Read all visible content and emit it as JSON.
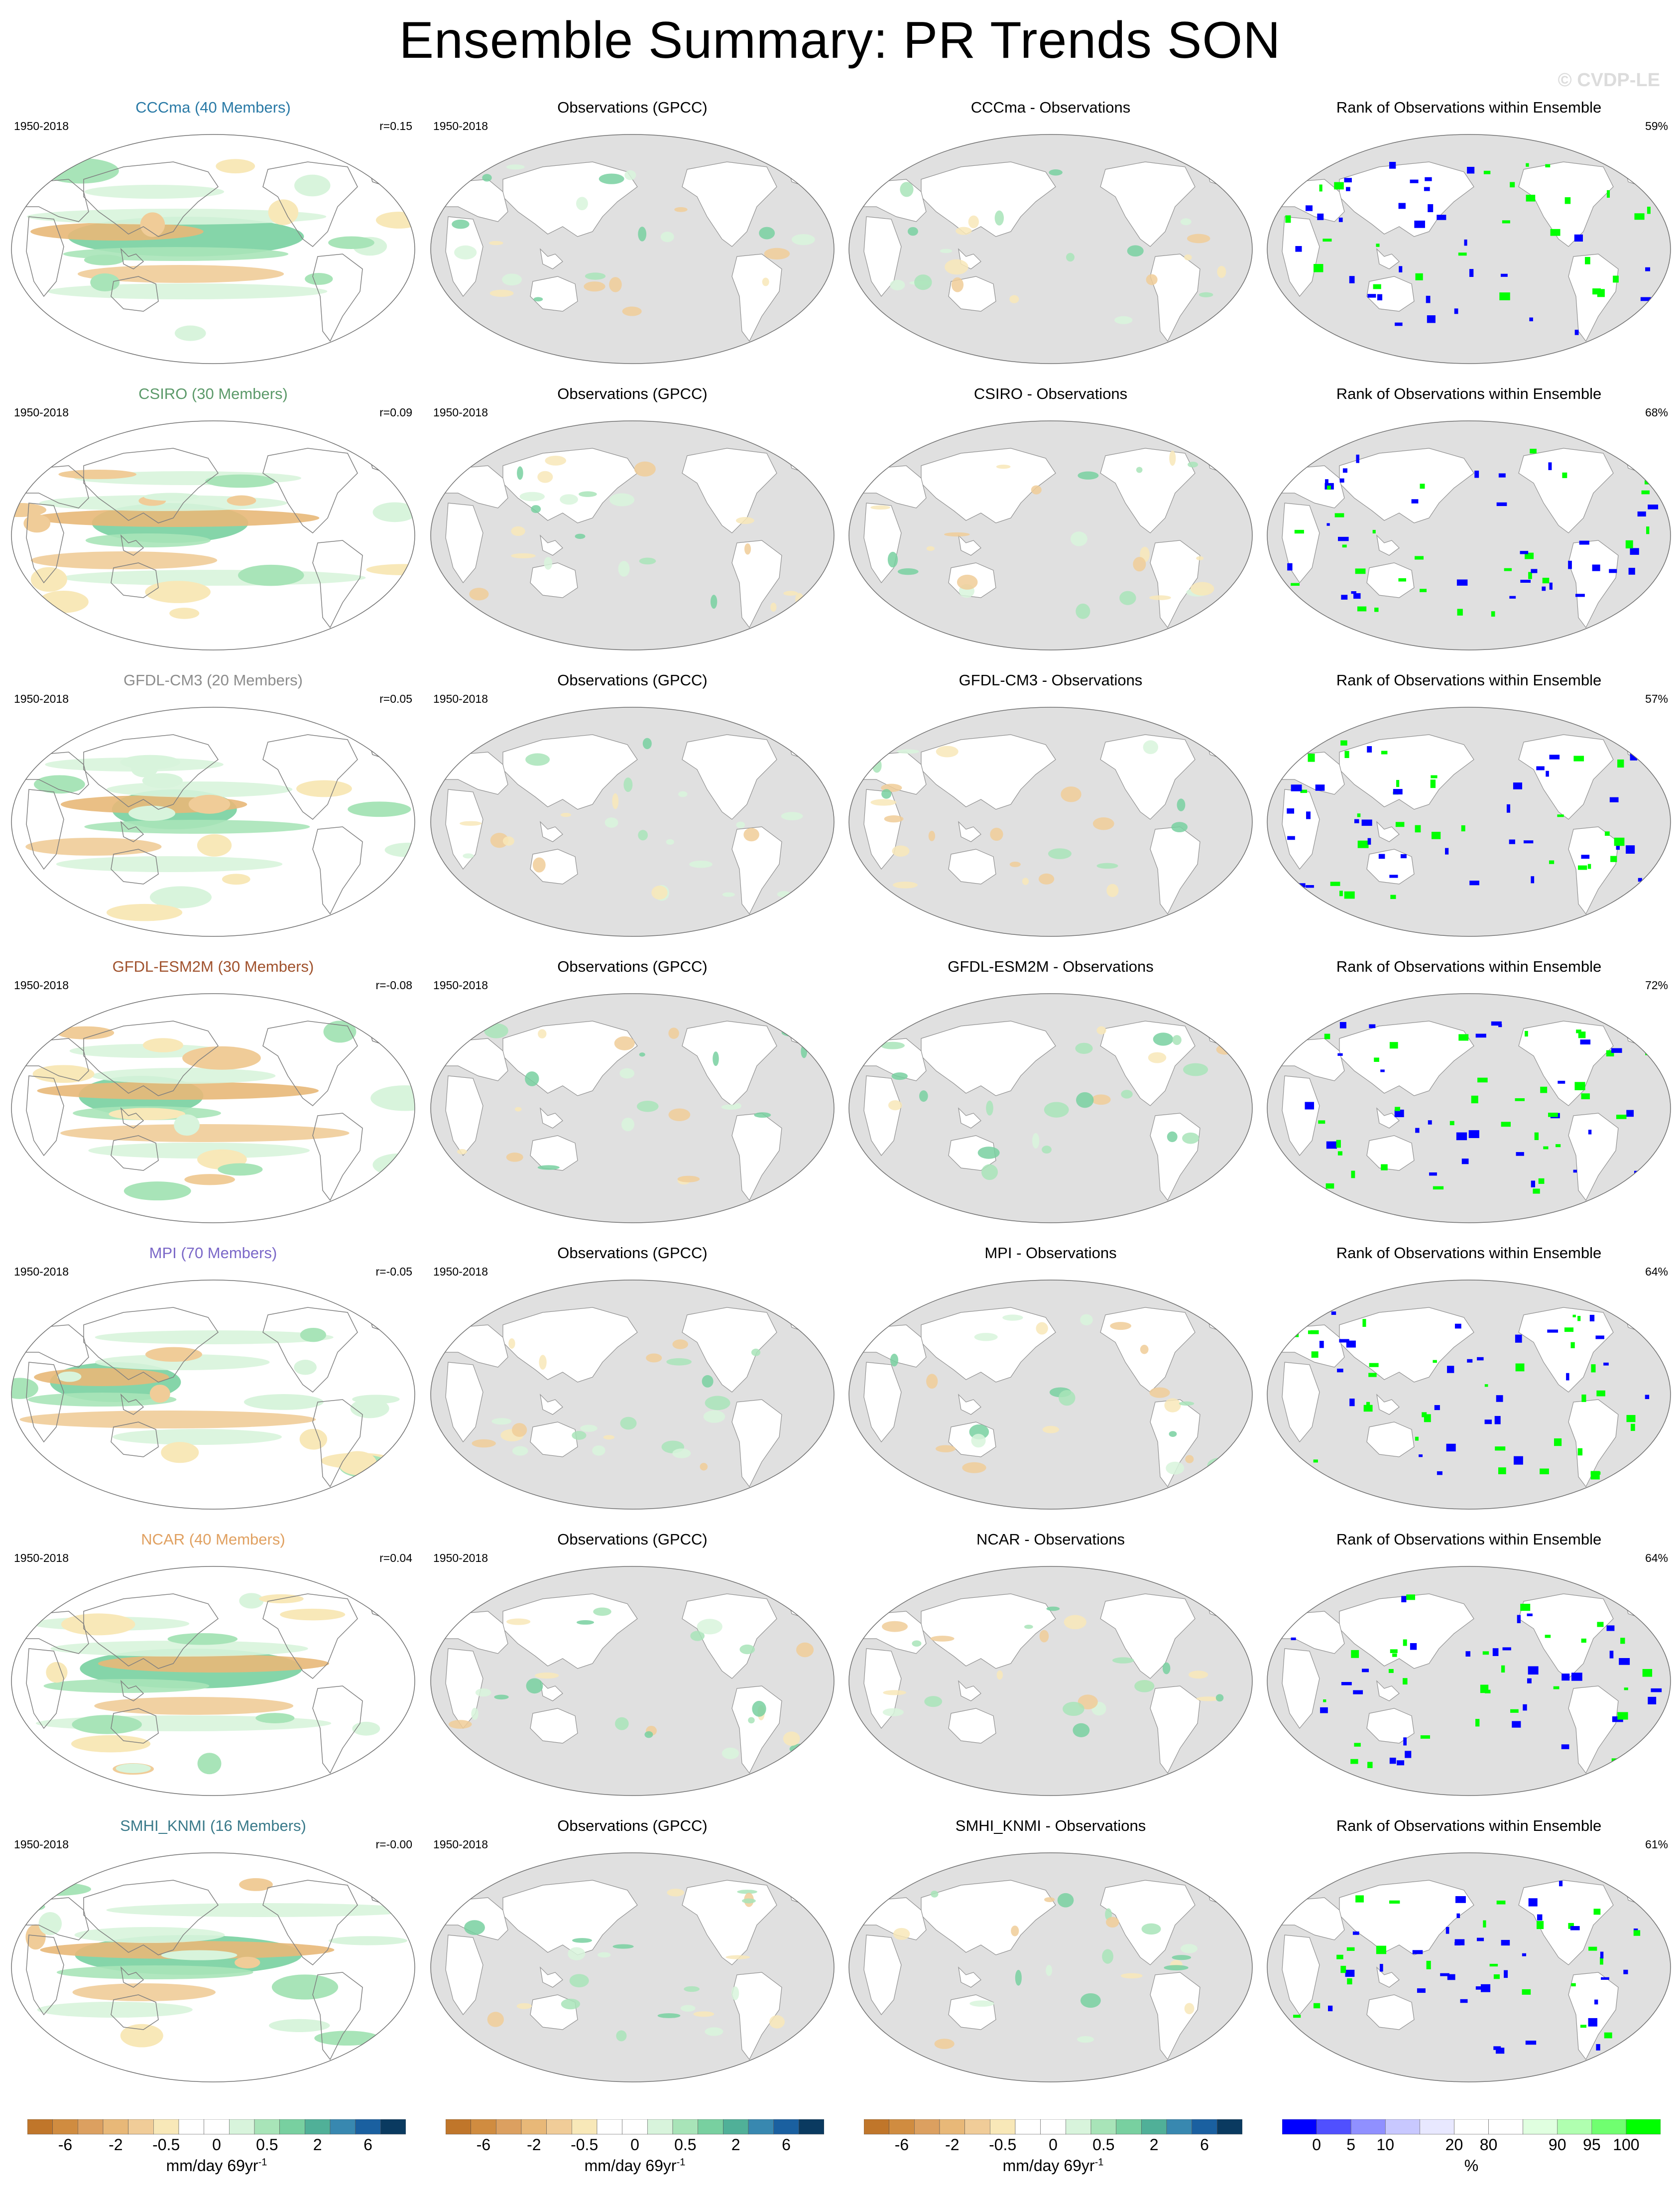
{
  "title": "Ensemble Summary: PR Trends SON",
  "watermark": "© CVDP-LE",
  "period": "1950-2018",
  "obs_title": "Observations (GPCC)",
  "rank_title": "Rank of Observations within Ensemble",
  "rows": [
    {
      "model": "CCCma (40 Members)",
      "model_color": "#2a7aa6",
      "corr": "r=0.15",
      "diff_title": "CCCma - Observations",
      "rank_pct": "59%"
    },
    {
      "model": "CSIRO (30 Members)",
      "model_color": "#5c9a6a",
      "corr": "r=0.09",
      "diff_title": "CSIRO - Observations",
      "rank_pct": "68%"
    },
    {
      "model": "GFDL-CM3 (20 Members)",
      "model_color": "#8c8c8c",
      "corr": "r=0.05",
      "diff_title": "GFDL-CM3 - Observations",
      "rank_pct": "57%"
    },
    {
      "model": "GFDL-ESM2M (30 Members)",
      "model_color": "#a0522d",
      "corr": "r=-0.08",
      "diff_title": "GFDL-ESM2M - Observations",
      "rank_pct": "72%"
    },
    {
      "model": "MPI (70 Members)",
      "model_color": "#7b68c8",
      "corr": "r=-0.05",
      "diff_title": "MPI - Observations",
      "rank_pct": "64%"
    },
    {
      "model": "NCAR (40 Members)",
      "model_color": "#e0a060",
      "corr": "r=0.04",
      "diff_title": "NCAR - Observations",
      "rank_pct": "64%"
    },
    {
      "model": "SMHI_KNMI (16 Members)",
      "model_color": "#3a7a8a",
      "corr": "r=-0.00",
      "diff_title": "SMHI_KNMI - Observations",
      "rank_pct": "61%"
    }
  ],
  "trend_colorbar": {
    "colors": [
      "#c0762a",
      "#d08c40",
      "#dca060",
      "#e8b878",
      "#f0cc98",
      "#f8e8b8",
      "#ffffff",
      "#ffffff",
      "#d8f4dc",
      "#a8e4b8",
      "#78d0a0",
      "#50b098",
      "#3888b0",
      "#1a60a0",
      "#0a3a60"
    ],
    "ticks": [
      "-6",
      "-2",
      "-0.5",
      "0",
      "0.5",
      "2",
      "6"
    ],
    "units": "mm/day 69yr",
    "units_sup": "-1"
  },
  "rank_colorbar": {
    "colors": [
      "#0000ff",
      "#5050ff",
      "#9090ff",
      "#c8c8ff",
      "#e8e8ff",
      "#ffffff",
      "#ffffff",
      "#e0ffe0",
      "#b0ffb0",
      "#70ff70",
      "#00ff00"
    ],
    "ticks": [
      "0",
      "5",
      "10",
      "20",
      "80",
      "90",
      "95",
      "100"
    ],
    "units": "%"
  }
}
